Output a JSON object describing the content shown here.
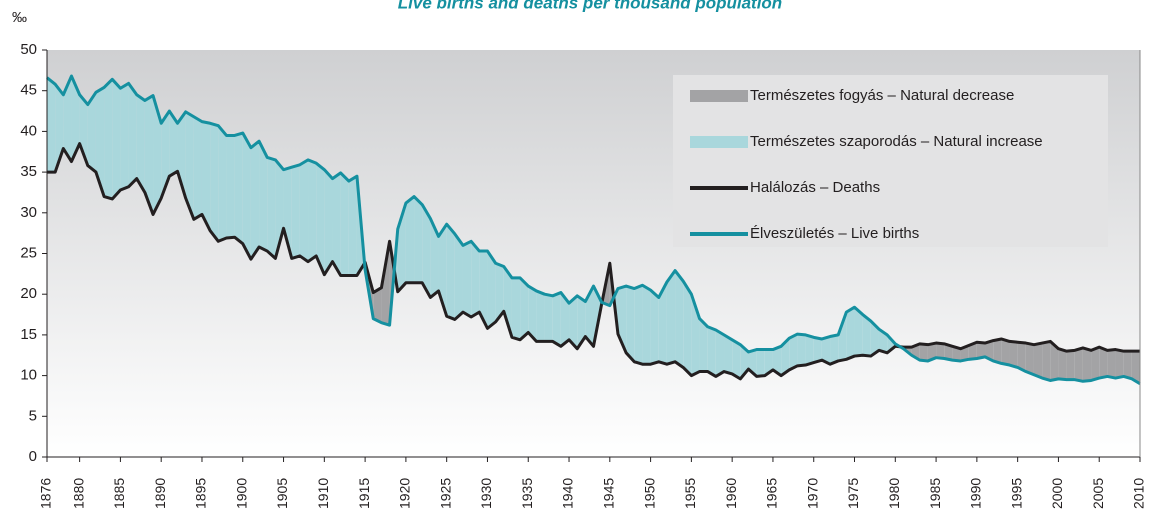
{
  "chart_data": {
    "type": "line",
    "title": "Live births and deaths per thousand population",
    "y_unit": "‰",
    "xlim": [
      1876,
      2010
    ],
    "xticks": [
      1876,
      1880,
      1885,
      1890,
      1895,
      1900,
      1905,
      1910,
      1915,
      1920,
      1925,
      1930,
      1935,
      1940,
      1945,
      1950,
      1955,
      1960,
      1965,
      1970,
      1975,
      1980,
      1985,
      1990,
      1995,
      2000,
      2005,
      2010
    ],
    "ylim": [
      0,
      50
    ],
    "yticks": [
      0,
      5,
      10,
      15,
      20,
      25,
      30,
      35,
      40,
      45,
      50
    ],
    "x": [
      1876,
      1877,
      1878,
      1879,
      1880,
      1881,
      1882,
      1883,
      1884,
      1885,
      1886,
      1887,
      1888,
      1889,
      1890,
      1891,
      1892,
      1893,
      1894,
      1895,
      1896,
      1897,
      1898,
      1899,
      1900,
      1901,
      1902,
      1903,
      1904,
      1905,
      1906,
      1907,
      1908,
      1909,
      1910,
      1911,
      1912,
      1913,
      1914,
      1915,
      1916,
      1917,
      1918,
      1919,
      1920,
      1921,
      1922,
      1923,
      1924,
      1925,
      1926,
      1927,
      1928,
      1929,
      1930,
      1931,
      1932,
      1933,
      1934,
      1935,
      1936,
      1937,
      1938,
      1939,
      1940,
      1941,
      1942,
      1943,
      1944,
      1945,
      1946,
      1947,
      1948,
      1949,
      1950,
      1951,
      1952,
      1953,
      1954,
      1955,
      1956,
      1957,
      1958,
      1959,
      1960,
      1961,
      1962,
      1963,
      1964,
      1965,
      1966,
      1967,
      1968,
      1969,
      1970,
      1971,
      1972,
      1973,
      1974,
      1975,
      1976,
      1977,
      1978,
      1979,
      1980,
      1981,
      1982,
      1983,
      1984,
      1985,
      1986,
      1987,
      1988,
      1989,
      1990,
      1991,
      1992,
      1993,
      1994,
      1995,
      1996,
      1997,
      1998,
      1999,
      2000,
      2001,
      2002,
      2003,
      2004,
      2005,
      2006,
      2007,
      2008,
      2009,
      2010
    ],
    "areas": [
      {
        "name": "Természetes fogyás – Natural decrease",
        "color": "#a3a3a5"
      },
      {
        "name": "Természetes szaporodás – Natural increase",
        "color": "#a9d7dc"
      }
    ],
    "series": [
      {
        "name": "Halálozás – Deaths",
        "color": "#231f20",
        "values": [
          35,
          35,
          37.9,
          36.3,
          38.5,
          35.8,
          35,
          32,
          31.7,
          32.8,
          33.2,
          34.2,
          32.5,
          29.8,
          31.8,
          34.5,
          35.1,
          31.8,
          29.2,
          29.8,
          27.8,
          26.5,
          26.9,
          27,
          26.2,
          24.3,
          25.8,
          25.3,
          24.4,
          28.1,
          24.4,
          24.7,
          24,
          24.7,
          22.4,
          24,
          22.3,
          22.3,
          22.3,
          23.9,
          20.2,
          20.8,
          26.5,
          20.3,
          21.4,
          21.4,
          21.4,
          19.6,
          20.4,
          17.3,
          16.9,
          17.8,
          17.2,
          17.8,
          15.8,
          16.6,
          17.9,
          14.7,
          14.4,
          15.3,
          14.2,
          14.2,
          14.2,
          13.6,
          14.4,
          13.3,
          14.8,
          13.6,
          18.8,
          23.8,
          15.1,
          12.8,
          11.7,
          11.4,
          11.4,
          11.7,
          11.4,
          11.7,
          11,
          10,
          10.5,
          10.5,
          9.9,
          10.5,
          10.2,
          9.6,
          10.8,
          9.9,
          10,
          10.7,
          10,
          10.7,
          11.2,
          11.3,
          11.6,
          11.9,
          11.4,
          11.8,
          12,
          12.4,
          12.5,
          12.4,
          13.1,
          12.8,
          13.6,
          13.5,
          13.5,
          13.9,
          13.8,
          14,
          13.9,
          13.6,
          13.3,
          13.7,
          14.1,
          14,
          14.3,
          14.5,
          14.2,
          14.1,
          14,
          13.8,
          14,
          14.2,
          13.3,
          13,
          13.1,
          13.4,
          13.1,
          13.5,
          13.1,
          13.2,
          13,
          13,
          13
        ]
      },
      {
        "name": "Élveszületés – Live births",
        "color": "#1590a0",
        "values": [
          46.6,
          45.8,
          44.5,
          46.8,
          44.5,
          43.3,
          44.8,
          45.4,
          46.4,
          45.3,
          45.9,
          44.5,
          43.8,
          44.4,
          41,
          42.5,
          41,
          42.4,
          41.8,
          41.2,
          41,
          40.7,
          39.5,
          39.5,
          39.8,
          38,
          38.8,
          36.8,
          36.5,
          35.3,
          35.6,
          35.9,
          36.5,
          36.1,
          35.3,
          34.2,
          34.9,
          33.9,
          34.5,
          23,
          17,
          16.5,
          16.2,
          28,
          31.2,
          32,
          31,
          29.3,
          27.1,
          28.6,
          27.4,
          26,
          26.5,
          25.3,
          25.3,
          23.8,
          23.4,
          22,
          22,
          21,
          20.4,
          20,
          19.8,
          20.2,
          18.9,
          19.8,
          19.1,
          21,
          19,
          18.6,
          20.7,
          21,
          20.7,
          21.1,
          20.5,
          19.6,
          21.5,
          22.9,
          21.6,
          20,
          17,
          16,
          15.6,
          15,
          14.4,
          13.8,
          12.9,
          13.2,
          13.2,
          13.2,
          13.6,
          14.6,
          15.1,
          15,
          14.7,
          14.5,
          14.8,
          15,
          17.8,
          18.4,
          17.5,
          16.7,
          15.7,
          15,
          13.9,
          13.3,
          12.5,
          11.9,
          11.8,
          12.2,
          12.1,
          11.9,
          11.8,
          12,
          12.1,
          12.3,
          11.8,
          11.5,
          11.3,
          11,
          10.5,
          10.1,
          9.7,
          9.4,
          9.6,
          9.5,
          9.5,
          9.3,
          9.4,
          9.7,
          9.9,
          9.7,
          9.9,
          9.6,
          9
        ]
      }
    ]
  }
}
